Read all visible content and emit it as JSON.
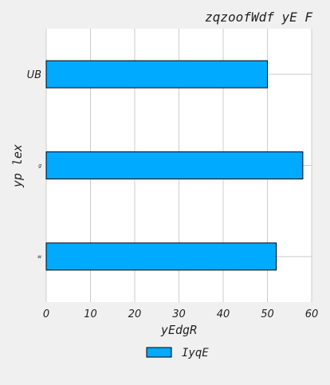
{
  "chart_data": {
    "type": "bar",
    "orientation": "horizontal",
    "title": "zqzoofWdf yE F",
    "xlabel": "yEdgR",
    "ylabel": "yp lex",
    "categories": [
      "UB",
      "g",
      "w"
    ],
    "series": [
      {
        "name": "IyqE",
        "values": [
          50,
          58,
          52
        ],
        "color": "#00aaff"
      }
    ],
    "xlim": [
      0,
      60
    ],
    "xticks": [
      0,
      10,
      20,
      30,
      40,
      50,
      60
    ],
    "grid": true,
    "legend": "bottom-center",
    "colors": {
      "plot_bg": "#ffffff",
      "page_bg": "#f0f0f0",
      "grid": "#cccccc",
      "bar_edge": "#000000"
    }
  }
}
